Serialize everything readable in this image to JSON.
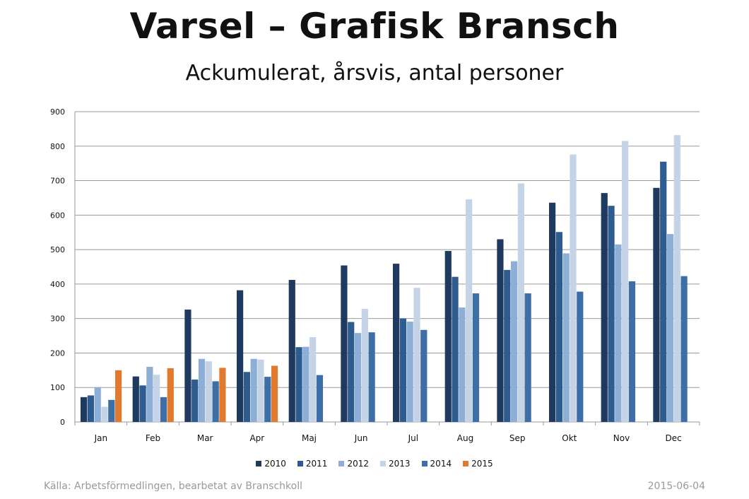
{
  "title": "Varsel – Grafisk Bransch",
  "subtitle": "Ackumulerat, årsvis, antal personer",
  "footer": {
    "source": "Källa: Arbetsförmedlingen, bearbetat av Branschkoll",
    "date": "2015-06-04"
  },
  "chart_data": {
    "type": "bar",
    "categories": [
      "Jan",
      "Feb",
      "Mar",
      "Apr",
      "Maj",
      "Jun",
      "Jul",
      "Aug",
      "Sep",
      "Okt",
      "Nov",
      "Dec"
    ],
    "series": [
      {
        "name": "2010",
        "color": "#1f3a5f",
        "values": [
          72,
          132,
          326,
          382,
          412,
          454,
          459,
          496,
          530,
          636,
          664,
          679
        ]
      },
      {
        "name": "2011",
        "color": "#2e5c8f",
        "values": [
          77,
          106,
          123,
          145,
          217,
          290,
          300,
          421,
          441,
          551,
          627,
          755
        ]
      },
      {
        "name": "2012",
        "color": "#8daed6",
        "values": [
          101,
          160,
          183,
          183,
          218,
          258,
          291,
          332,
          466,
          489,
          515,
          545
        ]
      },
      {
        "name": "2013",
        "color": "#c5d3e6",
        "values": [
          44,
          137,
          176,
          181,
          246,
          328,
          389,
          646,
          692,
          776,
          815,
          832
        ]
      },
      {
        "name": "2014",
        "color": "#3d6ea5",
        "values": [
          64,
          72,
          118,
          131,
          136,
          260,
          267,
          373,
          373,
          378,
          408,
          423
        ]
      },
      {
        "name": "2015",
        "color": "#e07a2e",
        "values": [
          150,
          156,
          157,
          163,
          null,
          null,
          null,
          null,
          null,
          null,
          null,
          null
        ]
      }
    ],
    "ylim": [
      0,
      900
    ],
    "yticks": [
      "0",
      "100",
      "200",
      "300",
      "400",
      "500",
      "600",
      "700",
      "800",
      "900"
    ],
    "grid": true,
    "legend_position": "bottom"
  }
}
